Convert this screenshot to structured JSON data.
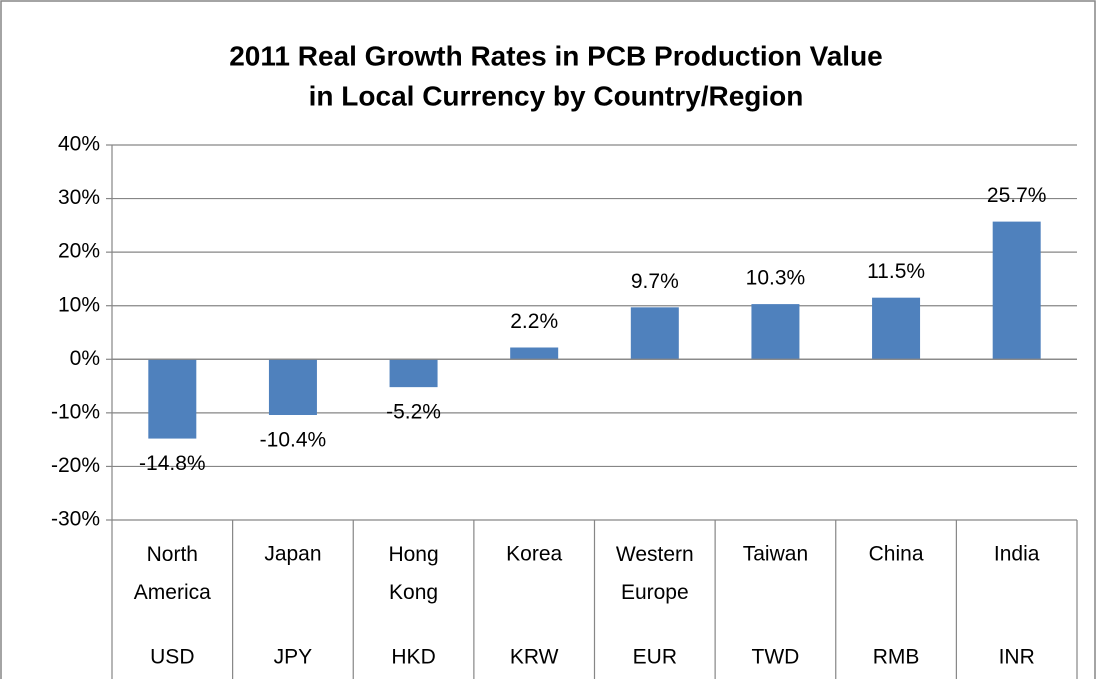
{
  "chart_data": {
    "type": "bar",
    "title": [
      "2011 Real Growth Rates in PCB Production Value",
      "in Local Currency by Country/Region"
    ],
    "categories": [
      "North America",
      "Japan",
      "Hong Kong",
      "Korea",
      "Western Europe",
      "Taiwan",
      "China",
      "India"
    ],
    "currencies": [
      "USD",
      "JPY",
      "HKD",
      "KRW",
      "EUR",
      "TWD",
      "RMB",
      "INR"
    ],
    "values": [
      -14.8,
      -10.4,
      -5.2,
      2.2,
      9.7,
      10.3,
      11.5,
      25.7
    ],
    "value_labels": [
      "-14.8%",
      "-10.4%",
      "-5.2%",
      "2.2%",
      "9.7%",
      "10.3%",
      "11.5%",
      "25.7%"
    ],
    "color": "#4f81bd",
    "ylim": [
      -30,
      40
    ],
    "yticks": [
      {
        "value": -30,
        "label": "-30%"
      },
      {
        "value": -20,
        "label": "-20%"
      },
      {
        "value": -10,
        "label": "-10%"
      },
      {
        "value": 0,
        "label": "0%"
      },
      {
        "value": 10,
        "label": "10%"
      },
      {
        "value": 20,
        "label": "20%"
      },
      {
        "value": 30,
        "label": "30%"
      },
      {
        "value": 40,
        "label": "40%"
      }
    ],
    "grid": true
  }
}
